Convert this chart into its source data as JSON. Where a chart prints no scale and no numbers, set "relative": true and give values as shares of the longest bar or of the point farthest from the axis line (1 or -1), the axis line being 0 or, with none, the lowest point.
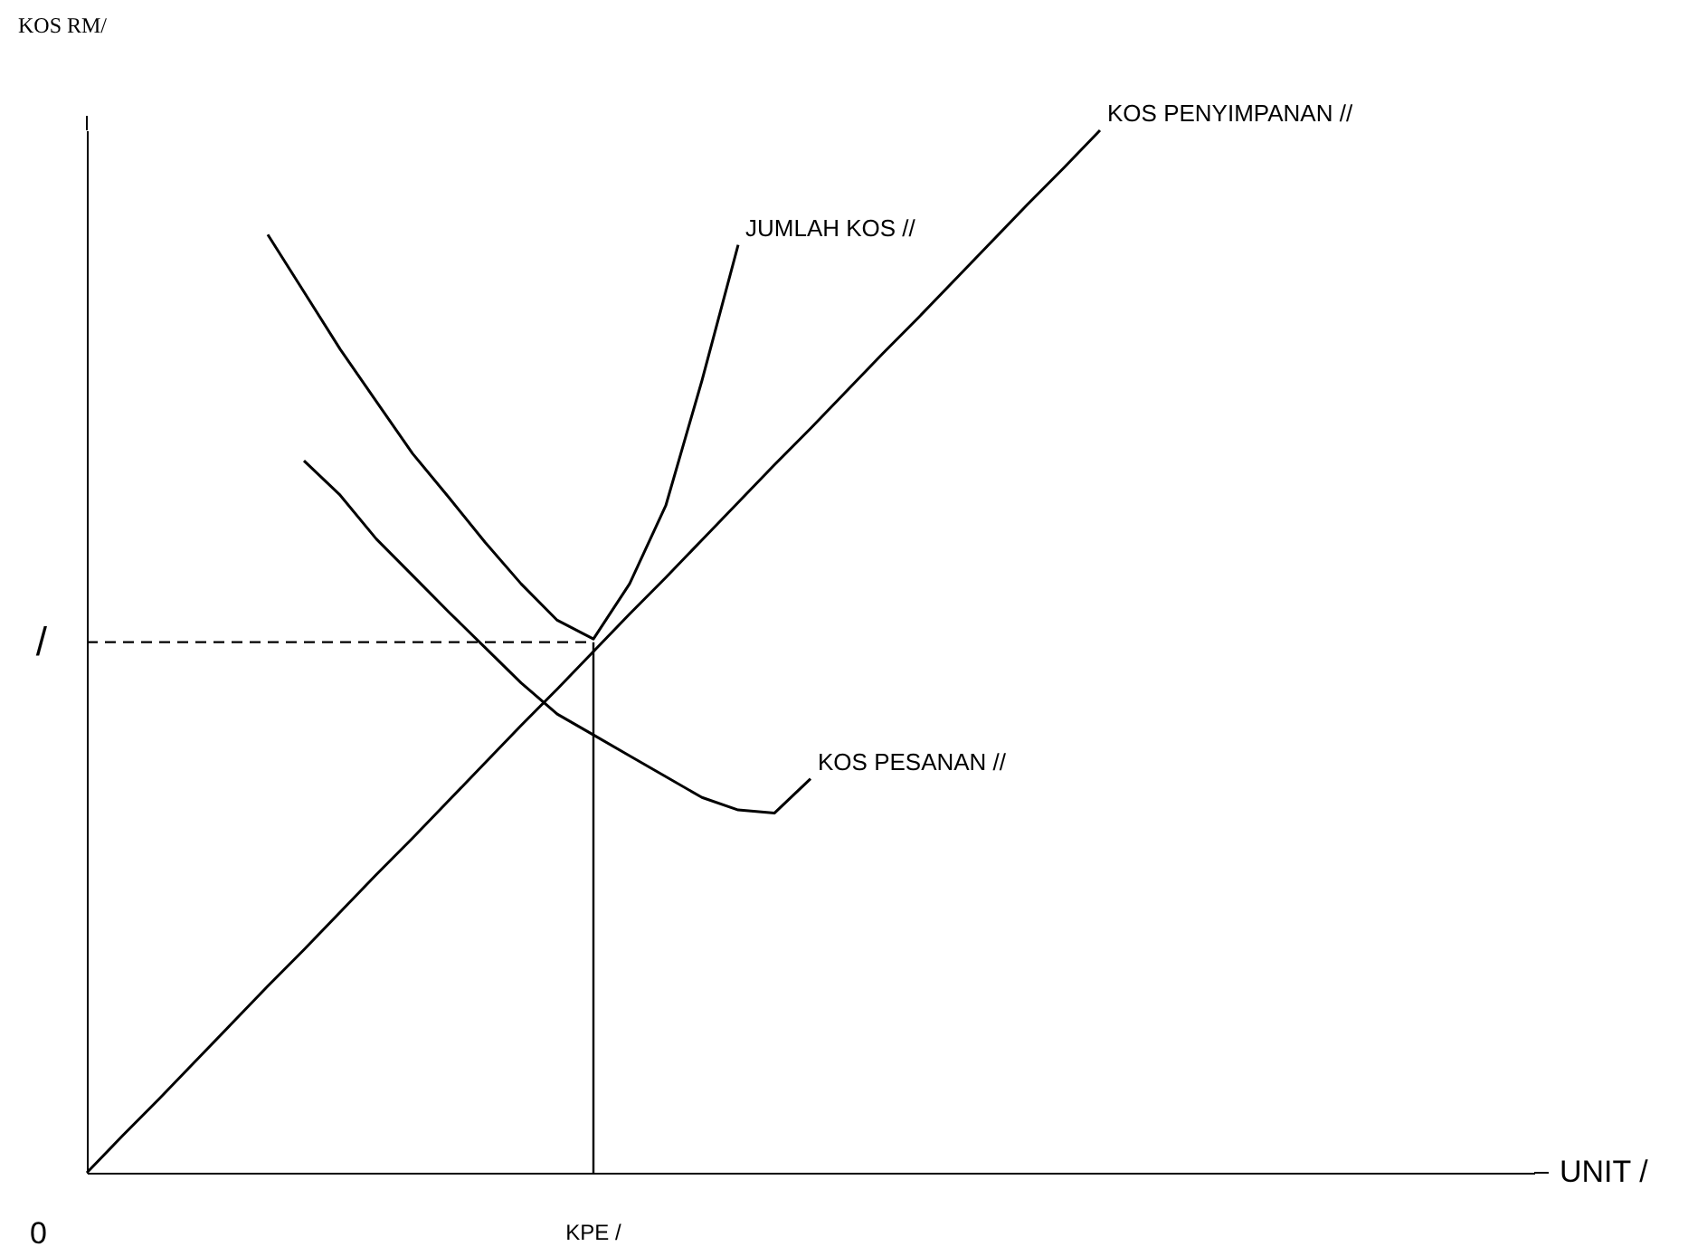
{
  "chart_data": {
    "type": "line",
    "relative": true,
    "xlabel": "UNIT /",
    "ylabel": "KOS RM/",
    "grid": false,
    "marker": "none",
    "categories": [
      null,
      null,
      null,
      null,
      null,
      null,
      null,
      null,
      null,
      null,
      null,
      null,
      null,
      null,
      null,
      null,
      null,
      null,
      null,
      null,
      null,
      null,
      null,
      null,
      null,
      null,
      null,
      null,
      null,
      null,
      null,
      null,
      null,
      null,
      null,
      null,
      null,
      null,
      null,
      null,
      null
    ],
    "series": [
      {
        "name": "KOS PENYIMPANAN //",
        "color": "#000000",
        "values": [
          0,
          0.036,
          0.071,
          0.107,
          0.143,
          0.179,
          0.214,
          0.25,
          0.286,
          0.321,
          0.357,
          0.393,
          0.429,
          0.464,
          0.5,
          0.536,
          0.571,
          0.607,
          0.643,
          0.679,
          0.714,
          0.75,
          0.786,
          0.821,
          0.857,
          0.893,
          0.929,
          0.964,
          1.0,
          null,
          null,
          null,
          null,
          null,
          null,
          null,
          null,
          null,
          null,
          null,
          null
        ]
      },
      {
        "name": "JUMLAH KOS //",
        "color": "#000000",
        "values": [
          null,
          null,
          null,
          null,
          null,
          0.9,
          0.845,
          0.79,
          0.74,
          0.69,
          0.648,
          0.605,
          0.565,
          0.53,
          0.512,
          0.565,
          0.64,
          0.76,
          0.89,
          null,
          null,
          null,
          null,
          null,
          null,
          null,
          null,
          null,
          null,
          null,
          null,
          null,
          null,
          null,
          null,
          null,
          null,
          null,
          null,
          null,
          null
        ]
      },
      {
        "name": "KOS PESANAN //",
        "color": "#000000",
        "values": [
          null,
          null,
          null,
          null,
          null,
          null,
          0.683,
          0.65,
          0.608,
          0.573,
          0.538,
          0.504,
          0.47,
          0.44,
          0.42,
          0.4,
          0.38,
          0.36,
          0.348,
          0.345,
          0.378,
          null,
          null,
          null,
          null,
          null,
          null,
          null,
          null,
          null,
          null,
          null,
          null,
          null,
          null,
          null,
          null,
          null,
          null,
          null,
          null
        ]
      }
    ],
    "ref_lines": [
      {
        "axis": "y",
        "value": 0.509,
        "label": "/",
        "line_style": "dashed",
        "color": "#000000"
      }
    ],
    "annotations": [
      "0",
      "KPE /"
    ]
  }
}
